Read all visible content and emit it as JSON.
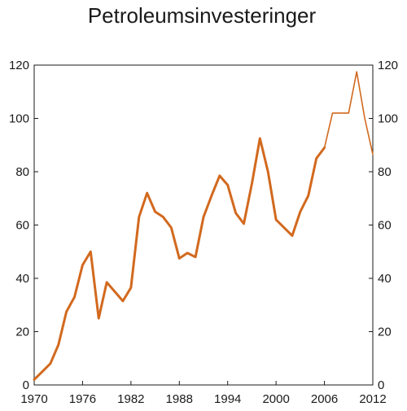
{
  "chart_data": {
    "type": "line",
    "title": "Petroleumsinvesteringer",
    "xlabel": "",
    "ylabel": "",
    "xlim": [
      1970,
      2012
    ],
    "ylim": [
      0,
      120
    ],
    "x_ticks": [
      "1970",
      "1976",
      "1982",
      "1988",
      "1994",
      "2000",
      "2006",
      "2012"
    ],
    "y_ticks": [
      "0",
      "20",
      "40",
      "60",
      "80",
      "100",
      "120"
    ],
    "grid": false,
    "legend": "none",
    "line_color": "#d2691e",
    "series": [
      {
        "style": "thick",
        "x": [
          1970,
          1971,
          1972,
          1973,
          1974,
          1975,
          1976,
          1977,
          1978,
          1979,
          1980,
          1981,
          1982,
          1983,
          1984,
          1985,
          1986,
          1987,
          1988,
          1989,
          1990,
          1991,
          1992,
          1993,
          1994,
          1995,
          1996,
          1997,
          1998,
          1999,
          2000,
          2001,
          2002,
          2003,
          2004,
          2005,
          2006
        ],
        "values": [
          2,
          5,
          8,
          15,
          27.5,
          33,
          45,
          50,
          25,
          38.5,
          35,
          31.5,
          36.5,
          63,
          72,
          65,
          63,
          59,
          47.5,
          49.5,
          48,
          63,
          71,
          78.5,
          75,
          64.5,
          60.5,
          75.5,
          92.5,
          80,
          62,
          59,
          56,
          65,
          71,
          85,
          89
        ]
      },
      {
        "style": "thin",
        "x": [
          2006,
          2007,
          2008,
          2009,
          2010,
          2011,
          2012
        ],
        "values": [
          89,
          102,
          102,
          102,
          117.5,
          100,
          86.5
        ]
      }
    ]
  }
}
